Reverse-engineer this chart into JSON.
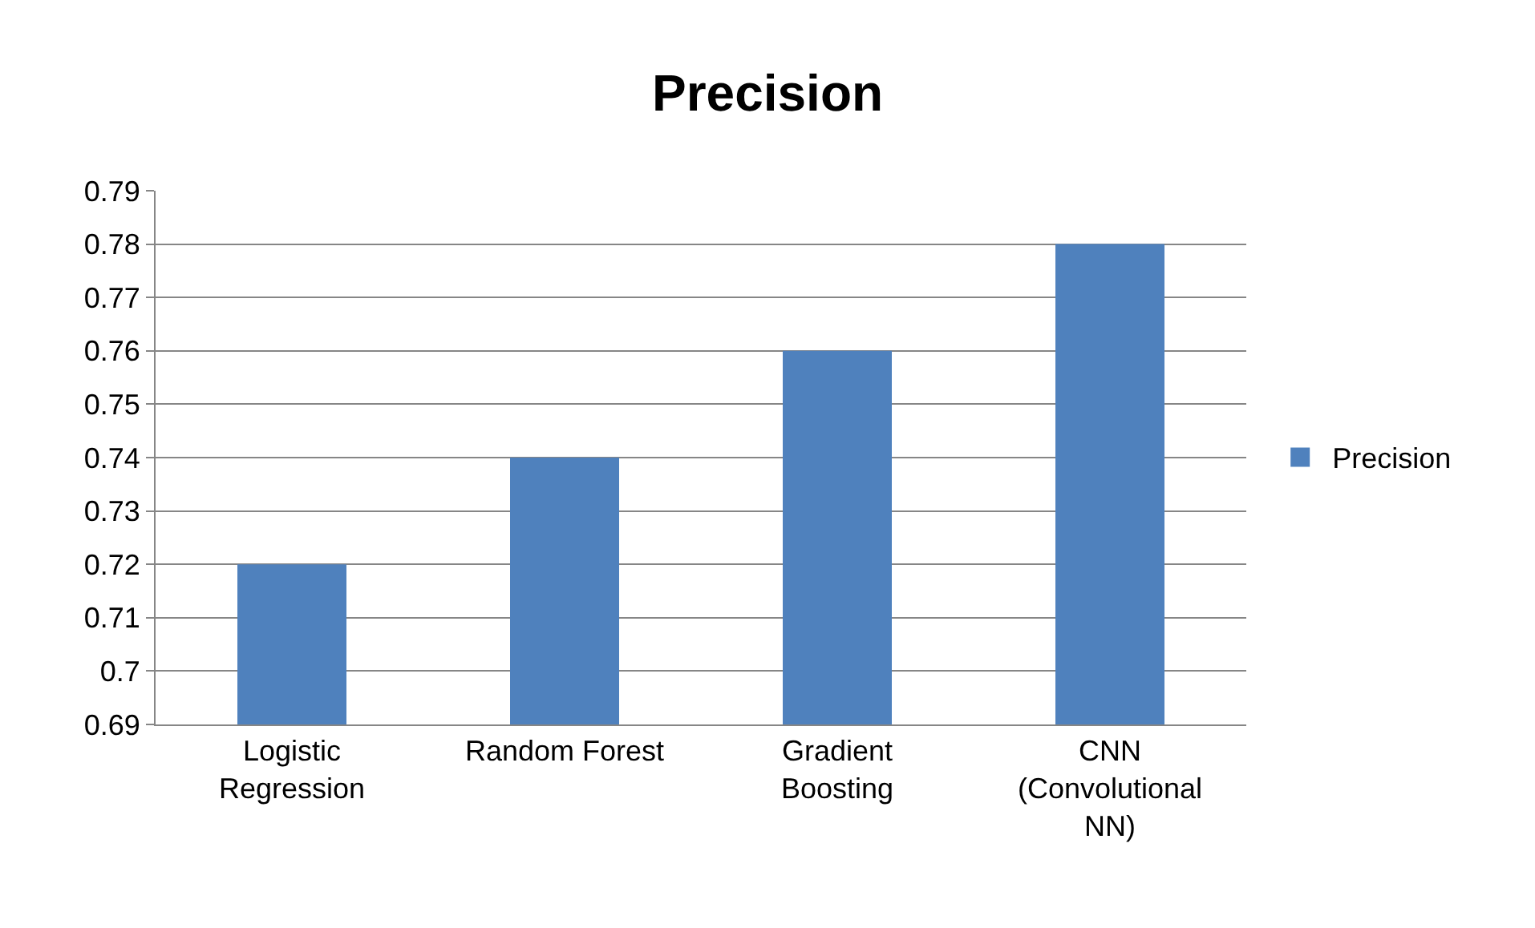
{
  "chart_data": {
    "type": "bar",
    "title": "Precision",
    "categories": [
      "Logistic Regression",
      "Random Forest",
      "Gradient Boosting",
      "CNN (Convolutional NN)"
    ],
    "series": [
      {
        "name": "Precision",
        "color": "#4f81bd",
        "values": [
          0.72,
          0.74,
          0.76,
          0.78
        ]
      }
    ],
    "ylim": [
      0.69,
      0.79
    ],
    "yticks": [
      0.69,
      0.7,
      0.71,
      0.72,
      0.73,
      0.74,
      0.75,
      0.76,
      0.77,
      0.78,
      0.79
    ],
    "grid": "y",
    "legend": "right"
  }
}
